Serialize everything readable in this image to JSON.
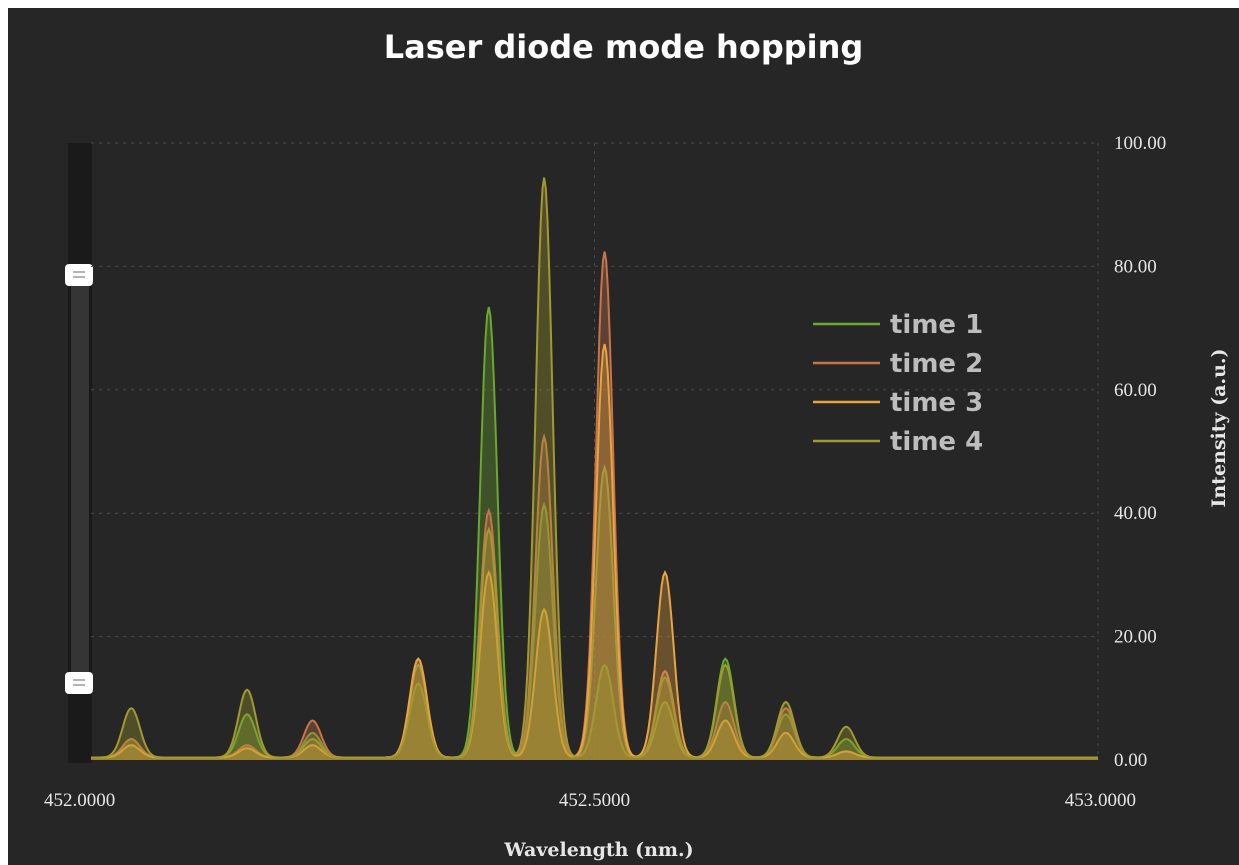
{
  "chart_data": {
    "type": "area",
    "title": "Laser diode mode hopping",
    "xlabel": "Wavelength (nm.)",
    "ylabel": "Intensity (a.u.)",
    "xlim": [
      452.0,
      453.0
    ],
    "ylim": [
      0,
      100
    ],
    "x_ticks": [
      "452.0000",
      "452.5000",
      "453.0000"
    ],
    "y_ticks": [
      "0.00",
      "20.00",
      "40.00",
      "60.00",
      "80.00",
      "100.00"
    ],
    "grid": true,
    "legend_position": "upper-right",
    "peak_centers": [
      452.04,
      452.155,
      452.22,
      452.325,
      452.395,
      452.45,
      452.51,
      452.57,
      452.63,
      452.69,
      452.75
    ],
    "series": [
      {
        "name": "time 1",
        "color": "#6aa82e",
        "peaks": [
          3,
          7,
          4,
          15,
          73,
          41,
          47,
          9,
          16,
          7,
          3
        ]
      },
      {
        "name": "time 2",
        "color": "#c8744a",
        "peaks": [
          3,
          2,
          6,
          16,
          40,
          52,
          82,
          14,
          9,
          8,
          1
        ]
      },
      {
        "name": "time 3",
        "color": "#e8a441",
        "peaks": [
          2,
          1.5,
          2,
          16,
          30,
          24,
          67,
          30,
          6,
          4,
          1
        ]
      },
      {
        "name": "time 4",
        "color": "#a09a30",
        "peaks": [
          8,
          11,
          3,
          12,
          37,
          94,
          15,
          13,
          15,
          9,
          5
        ]
      }
    ]
  }
}
